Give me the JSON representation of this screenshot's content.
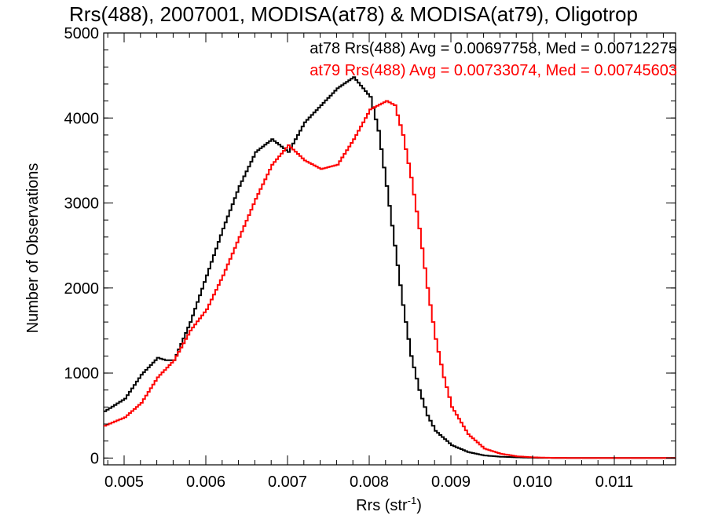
{
  "chart_data": {
    "type": "line",
    "title": "Rrs(488), 2007001, MODISA(at78) & MODISA(at79), Oligotrop",
    "xlabel": "Rrs (str",
    "xlabel_sup": "-1",
    "xlabel_close": ")",
    "ylabel": "Number of Observations",
    "xlim": [
      0.00475,
      0.01175
    ],
    "ylim": [
      -80,
      5000
    ],
    "xticks": [
      "0.005",
      "0.006",
      "0.007",
      "0.008",
      "0.009",
      "0.010",
      "0.011"
    ],
    "yticks": [
      "0",
      "1000",
      "2000",
      "3000",
      "4000",
      "5000"
    ],
    "legend_position": "top-right",
    "legend": [
      "at78 Rrs(488) Avg = 0.00697758, Med = 0.00712275",
      "at79 Rrs(488) Avg = 0.00733074, Med = 0.00745603"
    ],
    "series": [
      {
        "color": "#000000",
        "x": [
          0.00475,
          0.005,
          0.0052,
          0.0054,
          0.0055,
          0.0056,
          0.0058,
          0.006,
          0.0062,
          0.0064,
          0.0066,
          0.0068,
          0.007,
          0.0072,
          0.0074,
          0.0076,
          0.0078,
          0.008,
          0.0081,
          0.0082,
          0.0083,
          0.0084,
          0.0085,
          0.0086,
          0.0087,
          0.0088,
          0.009,
          0.0092,
          0.0094,
          0.0096,
          0.0098,
          0.01,
          0.0105,
          0.011,
          0.01175
        ],
        "y": [
          550,
          700,
          980,
          1180,
          1150,
          1150,
          1600,
          2150,
          2700,
          3200,
          3600,
          3750,
          3600,
          3950,
          4150,
          4350,
          4480,
          4250,
          3850,
          3200,
          2500,
          1800,
          1200,
          800,
          500,
          320,
          150,
          70,
          30,
          15,
          8,
          3,
          0,
          0,
          0
        ]
      },
      {
        "color": "#ff0000",
        "x": [
          0.00475,
          0.005,
          0.0052,
          0.0054,
          0.0056,
          0.0058,
          0.006,
          0.0062,
          0.0064,
          0.0066,
          0.0068,
          0.007,
          0.0072,
          0.0074,
          0.0076,
          0.0078,
          0.008,
          0.0082,
          0.0083,
          0.0084,
          0.0085,
          0.0086,
          0.0087,
          0.0088,
          0.0089,
          0.009,
          0.0092,
          0.0094,
          0.0096,
          0.0098,
          0.01,
          0.0102,
          0.0105,
          0.011,
          0.01175
        ],
        "y": [
          380,
          480,
          650,
          950,
          1150,
          1500,
          1750,
          2150,
          2600,
          3050,
          3450,
          3680,
          3500,
          3400,
          3450,
          3750,
          4100,
          4200,
          4150,
          3800,
          3300,
          2700,
          2000,
          1400,
          950,
          600,
          280,
          110,
          50,
          20,
          8,
          3,
          1,
          0,
          0
        ]
      }
    ]
  }
}
